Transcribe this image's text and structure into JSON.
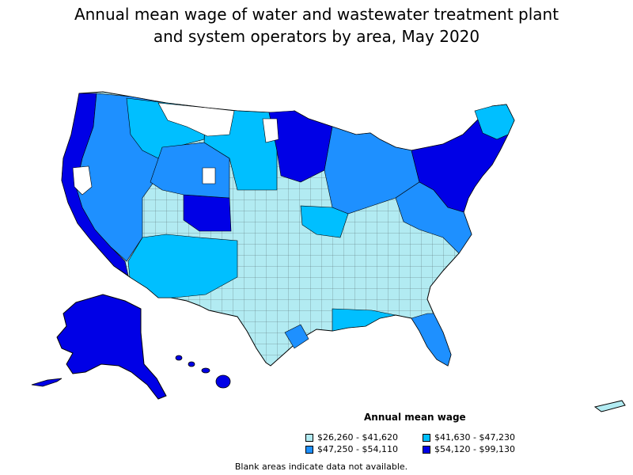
{
  "title": {
    "line1": "Annual mean wage of water and wastewater treatment plant",
    "line2": "and system operators by area, May 2020"
  },
  "legend": {
    "title": "Annual mean wage",
    "items": [
      {
        "label": "$26,260 - $41,620",
        "color": "#b2ebf2"
      },
      {
        "label": "$41,630 - $47,230",
        "color": "#00bfff"
      },
      {
        "label": "$47,250 - $54,110",
        "color": "#1e90ff"
      },
      {
        "label": "$54,120 - $99,130",
        "color": "#0000e6"
      }
    ]
  },
  "footnote": "Blank areas indicate data not available.",
  "map_layers": [
    "contiguous-united-states",
    "alaska",
    "hawaii",
    "puerto-rico"
  ]
}
